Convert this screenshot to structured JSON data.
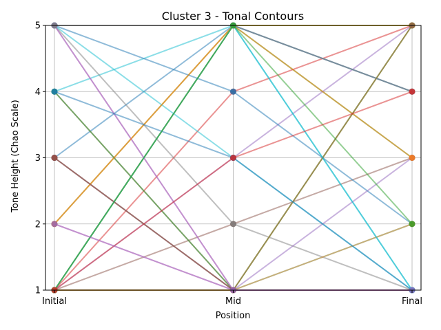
{
  "chart_data": {
    "type": "line",
    "title": "Cluster 3 - Tonal Contours",
    "xlabel": "Position",
    "ylabel": "Tone Height (Chao Scale)",
    "categories": [
      "Initial",
      "Mid",
      "Final"
    ],
    "ylim": [
      1,
      5
    ],
    "yticks": [
      1,
      2,
      3,
      4,
      5
    ],
    "grid": true,
    "legend": "none",
    "series": [
      {
        "values": [
          1,
          1,
          1
        ],
        "color": "#1f77b4"
      },
      {
        "values": [
          1,
          5,
          5
        ],
        "color": "#ff7f0e"
      },
      {
        "values": [
          1,
          5,
          3
        ],
        "color": "#2ca02c"
      },
      {
        "values": [
          1,
          4,
          5
        ],
        "color": "#d62728"
      },
      {
        "values": [
          1,
          3,
          5
        ],
        "color": "#9467bd"
      },
      {
        "values": [
          1,
          2,
          3
        ],
        "color": "#8c564b"
      },
      {
        "values": [
          2,
          1,
          1
        ],
        "color": "#e377c2"
      },
      {
        "values": [
          2,
          5,
          4
        ],
        "color": "#7f7f7f"
      },
      {
        "values": [
          2,
          5,
          5
        ],
        "color": "#bcbd22"
      },
      {
        "values": [
          3,
          1,
          2
        ],
        "color": "#17becf"
      },
      {
        "values": [
          3,
          5,
          4
        ],
        "color": "#1f77b4"
      },
      {
        "values": [
          3,
          1,
          1
        ],
        "color": "#d62728"
      },
      {
        "values": [
          4,
          1,
          1
        ],
        "color": "#8c564b"
      },
      {
        "values": [
          4,
          5,
          1
        ],
        "color": "#17becf"
      },
      {
        "values": [
          4,
          1,
          5
        ],
        "color": "#2ca02c"
      },
      {
        "values": [
          5,
          1,
          1
        ],
        "color": "#e377c2"
      },
      {
        "values": [
          5,
          2,
          1
        ],
        "color": "#7f7f7f"
      },
      {
        "values": [
          5,
          3,
          1
        ],
        "color": "#17becf"
      },
      {
        "values": [
          5,
          4,
          2
        ],
        "color": "#1f77b4"
      },
      {
        "values": [
          5,
          1,
          3
        ],
        "color": "#9467bd"
      },
      {
        "values": [
          1,
          1,
          5
        ],
        "color": "#bcbd22"
      },
      {
        "values": [
          1,
          1,
          2
        ],
        "color": "#ff7f0e"
      },
      {
        "values": [
          2,
          5,
          3
        ],
        "color": "#ff7f0e"
      },
      {
        "values": [
          3,
          1,
          5
        ],
        "color": "#8c564b"
      },
      {
        "values": [
          4,
          3,
          1
        ],
        "color": "#1f77b4"
      },
      {
        "values": [
          1,
          5,
          1
        ],
        "color": "#17becf"
      },
      {
        "values": [
          5,
          5,
          4
        ],
        "color": "#7f7f7f"
      },
      {
        "values": [
          1,
          5,
          2
        ],
        "color": "#2ca02c"
      },
      {
        "values": [
          1,
          3,
          4
        ],
        "color": "#d62728"
      },
      {
        "values": [
          2,
          1,
          1
        ],
        "color": "#9467bd"
      }
    ]
  }
}
